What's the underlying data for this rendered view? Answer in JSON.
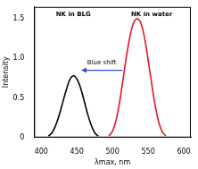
{
  "chart_data": {
    "type": "line",
    "x_label": "λmax, nm",
    "y_label": "Intensity",
    "xlim": [
      390,
      610
    ],
    "xticks": [
      400,
      450,
      500,
      550,
      600
    ],
    "ylim": [
      0,
      1.65
    ],
    "yticks": [
      0,
      0.5,
      1,
      1.5
    ],
    "grid": false,
    "series": [
      {
        "name": "NK in BLG",
        "color": "#000000",
        "x": [
          410,
          415,
          420,
          425,
          430,
          435,
          440,
          445,
          450,
          455,
          460,
          465,
          470,
          475,
          480
        ],
        "values": [
          0.02,
          0.06,
          0.15,
          0.28,
          0.44,
          0.6,
          0.73,
          0.78,
          0.74,
          0.63,
          0.47,
          0.3,
          0.16,
          0.06,
          0.02
        ]
      },
      {
        "name": "NK in water",
        "color": "#e8141a",
        "x": [
          495,
          500,
          505,
          510,
          515,
          520,
          525,
          530,
          535,
          540,
          545,
          550,
          555,
          560,
          565,
          570,
          575
        ],
        "values": [
          0.02,
          0.08,
          0.22,
          0.45,
          0.75,
          1.05,
          1.3,
          1.46,
          1.5,
          1.44,
          1.26,
          0.98,
          0.68,
          0.4,
          0.19,
          0.07,
          0.02
        ]
      }
    ],
    "annotations": [
      "NK in BLG",
      "NK in water",
      "Blue shift"
    ]
  }
}
